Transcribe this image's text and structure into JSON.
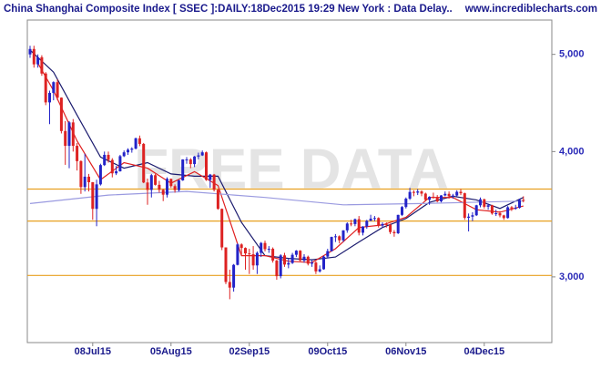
{
  "chart_data": {
    "type": "candlestick",
    "title": "China Shanghai Composite Index [ SSEC ]:DAILY:18Dec2015 19:29 New York : Data Delay..",
    "source": "www.incrediblecharts.com",
    "watermark": "FREE DATA",
    "log_scale": true,
    "ylim": [
      2580,
      5410
    ],
    "yticks": [
      {
        "value": 3000,
        "label": "3,000"
      },
      {
        "value": 4000,
        "label": "4,000"
      },
      {
        "value": 5000,
        "label": "5,000"
      }
    ],
    "up_color": "#2323c8",
    "down_color": "#dd2222",
    "levels": [
      3670,
      3410,
      3010
    ],
    "level_color": "#e8a020",
    "categories": [
      null,
      null,
      null,
      null,
      null,
      null,
      null,
      null,
      null,
      null,
      null,
      null,
      null,
      null,
      null,
      null,
      "08Jul15",
      null,
      null,
      null,
      null,
      null,
      null,
      null,
      null,
      null,
      null,
      null,
      null,
      null,
      null,
      null,
      null,
      null,
      null,
      null,
      "05Aug15",
      null,
      null,
      null,
      null,
      null,
      null,
      null,
      null,
      null,
      null,
      null,
      null,
      null,
      null,
      null,
      null,
      null,
      null,
      null,
      "02Sep15",
      null,
      null,
      null,
      null,
      null,
      null,
      null,
      null,
      null,
      null,
      null,
      null,
      null,
      null,
      null,
      null,
      null,
      null,
      null,
      "09Oct15",
      null,
      null,
      null,
      null,
      null,
      null,
      null,
      null,
      null,
      null,
      null,
      null,
      null,
      null,
      null,
      null,
      null,
      null,
      null,
      "06Nov15",
      null,
      null,
      null,
      null,
      null,
      null,
      null,
      null,
      null,
      null,
      null,
      null,
      null,
      null,
      null,
      null,
      null,
      null,
      null,
      "04Dec15",
      null,
      null,
      null,
      null,
      null,
      null,
      null,
      null,
      null,
      null
    ],
    "open": [
      5000,
      5062,
      4887,
      4967,
      4785,
      4478,
      4577,
      4691,
      4527,
      4193,
      4053,
      4277,
      4053,
      3913,
      3687,
      3776,
      3728,
      3507,
      3710,
      3878,
      3970,
      3924,
      3805,
      3823,
      3958,
      3993,
      4017,
      4027,
      4124,
      4071,
      3726,
      3663,
      3789,
      3706,
      3664,
      3623,
      3757,
      3695,
      3661,
      3744,
      3928,
      3928,
      3887,
      3955,
      3965,
      3993,
      3748,
      3794,
      3664,
      3507,
      3210,
      2965,
      2927,
      3084,
      3232,
      3206,
      3166,
      3160,
      3080,
      3170,
      3243,
      3197,
      3200,
      3114,
      3005,
      3152,
      3086,
      3097,
      3156,
      3186,
      3115,
      3142,
      3092,
      3100,
      3038,
      3053,
      3143,
      3183,
      3288,
      3293,
      3263,
      3338,
      3391,
      3387,
      3425,
      3320,
      3368,
      3412,
      3429,
      3434,
      3375,
      3387,
      3382,
      3325,
      3316,
      3459,
      3522,
      3590,
      3646,
      3640,
      3650,
      3632,
      3580,
      3606,
      3604,
      3568,
      3617,
      3630,
      3610,
      3616,
      3647,
      3635,
      3436,
      3445,
      3456,
      3536,
      3585,
      3524,
      3536,
      3470,
      3472,
      3455,
      3434,
      3520,
      3510,
      3516,
      3580
    ],
    "high": [
      5100,
      5100,
      5000,
      4990,
      4800,
      4600,
      4700,
      4720,
      4530,
      4290,
      4290,
      4310,
      4080,
      3920,
      3980,
      3800,
      3730,
      3750,
      3890,
      4000,
      4000,
      3940,
      3870,
      3970,
      4010,
      4030,
      4040,
      4130,
      4150,
      4080,
      3760,
      3800,
      3800,
      3740,
      3670,
      3770,
      3760,
      3710,
      3750,
      3930,
      3950,
      3940,
      3960,
      3990,
      4010,
      4000,
      3800,
      3800,
      3670,
      3510,
      3210,
      3050,
      3090,
      3240,
      3240,
      3210,
      3200,
      3220,
      3180,
      3250,
      3260,
      3220,
      3210,
      3120,
      3160,
      3170,
      3130,
      3170,
      3190,
      3190,
      3160,
      3150,
      3120,
      3110,
      3080,
      3150,
      3200,
      3290,
      3310,
      3300,
      3340,
      3400,
      3420,
      3430,
      3450,
      3370,
      3420,
      3460,
      3450,
      3440,
      3400,
      3400,
      3390,
      3340,
      3460,
      3530,
      3600,
      3680,
      3660,
      3670,
      3660,
      3640,
      3610,
      3640,
      3620,
      3620,
      3650,
      3650,
      3630,
      3660,
      3670,
      3640,
      3470,
      3480,
      3540,
      3600,
      3590,
      3550,
      3540,
      3500,
      3490,
      3460,
      3530,
      3530,
      3540,
      3590,
      3610
    ],
    "low": [
      4960,
      4850,
      4850,
      4760,
      4450,
      4260,
      4500,
      4500,
      4170,
      3880,
      3850,
      4000,
      3830,
      3630,
      3650,
      3650,
      3420,
      3370,
      3700,
      3870,
      3900,
      3770,
      3790,
      3820,
      3950,
      3970,
      3990,
      4020,
      4050,
      3720,
      3540,
      3600,
      3700,
      3640,
      3570,
      3600,
      3680,
      3640,
      3650,
      3740,
      3890,
      3850,
      3860,
      3930,
      3960,
      3740,
      3680,
      3650,
      3500,
      3190,
      2950,
      2850,
      2900,
      3080,
      3150,
      3050,
      3020,
      3050,
      3020,
      3140,
      3180,
      3170,
      3100,
      2980,
      2990,
      3070,
      3060,
      3090,
      3140,
      3110,
      3100,
      3080,
      3070,
      3020,
      3030,
      3050,
      3130,
      3180,
      3250,
      3240,
      3250,
      3320,
      3370,
      3370,
      3300,
      3300,
      3350,
      3410,
      3410,
      3360,
      3360,
      3360,
      3310,
      3290,
      3310,
      3450,
      3510,
      3580,
      3610,
      3620,
      3610,
      3570,
      3540,
      3590,
      3560,
      3560,
      3610,
      3590,
      3590,
      3610,
      3620,
      3420,
      3330,
      3410,
      3450,
      3520,
      3510,
      3500,
      3460,
      3450,
      3440,
      3420,
      3430,
      3490,
      3500,
      3510,
      3560
    ],
    "close": [
      5062,
      4887,
      4967,
      4785,
      4478,
      4577,
      4691,
      4527,
      4193,
      4053,
      4277,
      4053,
      3913,
      3687,
      3776,
      3728,
      3507,
      3710,
      3878,
      3970,
      3924,
      3805,
      3823,
      3958,
      3993,
      4017,
      4027,
      4124,
      4071,
      3726,
      3663,
      3789,
      3706,
      3664,
      3623,
      3757,
      3695,
      3661,
      3744,
      3928,
      3928,
      3887,
      3955,
      3965,
      3993,
      3748,
      3794,
      3664,
      3507,
      3210,
      2965,
      2927,
      3084,
      3232,
      3206,
      3166,
      3160,
      3080,
      3170,
      3243,
      3197,
      3200,
      3114,
      3005,
      3152,
      3086,
      3097,
      3156,
      3186,
      3115,
      3142,
      3092,
      3100,
      3038,
      3053,
      3143,
      3183,
      3288,
      3293,
      3263,
      3338,
      3391,
      3387,
      3425,
      3320,
      3368,
      3412,
      3429,
      3434,
      3375,
      3387,
      3382,
      3325,
      3316,
      3459,
      3522,
      3590,
      3646,
      3640,
      3650,
      3632,
      3580,
      3606,
      3604,
      3568,
      3617,
      3630,
      3610,
      3616,
      3647,
      3635,
      3436,
      3445,
      3456,
      3536,
      3585,
      3524,
      3536,
      3470,
      3472,
      3455,
      3434,
      3520,
      3510,
      3516,
      3580,
      3578
    ],
    "series": [
      {
        "color": "#1a1a6e",
        "x": [
          0,
          6,
          12,
          18,
          24,
          30,
          36,
          42,
          48,
          54,
          60,
          66,
          72,
          78,
          84,
          90,
          96,
          102,
          108,
          114,
          120,
          126
        ],
        "values": [
          5050,
          4800,
          4350,
          3950,
          3850,
          3900,
          3800,
          3780,
          3780,
          3400,
          3150,
          3130,
          3120,
          3140,
          3250,
          3360,
          3430,
          3560,
          3610,
          3580,
          3510,
          3600
        ]
      },
      {
        "color": "#e02020",
        "x": [
          2,
          6,
          12,
          18,
          24,
          30,
          36,
          42,
          48,
          54,
          60,
          66,
          72,
          78,
          84,
          90,
          96,
          102,
          108,
          114,
          120,
          126
        ],
        "values": [
          4900,
          4600,
          4100,
          3750,
          3900,
          3850,
          3720,
          3820,
          3700,
          3150,
          3150,
          3110,
          3100,
          3200,
          3360,
          3380,
          3440,
          3600,
          3600,
          3500,
          3480,
          3530
        ]
      },
      {
        "color": "#9a9ae0",
        "x": [
          0,
          20,
          40,
          60,
          80,
          100,
          126
        ],
        "values": [
          3550,
          3620,
          3650,
          3600,
          3540,
          3550,
          3570
        ]
      }
    ]
  }
}
